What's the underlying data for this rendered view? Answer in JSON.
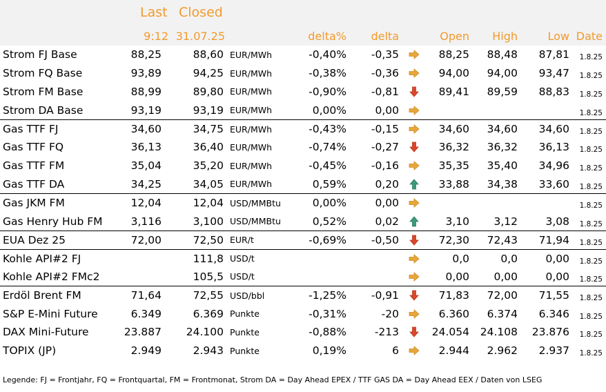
{
  "header": {
    "last_label": "Last",
    "closed_label": "Closed",
    "last_time": "9:12",
    "closed_date": "31.07.25",
    "delta_pct_label": "delta%",
    "delta_label": "delta",
    "open_label": "Open",
    "high_label": "High",
    "low_label": "Low",
    "date_label": "Date"
  },
  "colors": {
    "header_text": "#f39a2a",
    "header_bg": "#f2f2f2",
    "arrow_right": "#e8a73b",
    "arrow_down": "#d9472b",
    "arrow_up": "#3d9a7a"
  },
  "rows": [
    {
      "name": "Strom FJ Base",
      "last": "88,25",
      "closed": "88,60",
      "unit": "EUR/MWh",
      "delta_pct": "-0,40%",
      "delta": "-0,35",
      "trend": "right",
      "open": "88,25",
      "high": "88,48",
      "low": "87,81",
      "date": "1.8.25",
      "sep": false
    },
    {
      "name": "Strom FQ Base",
      "last": "93,89",
      "closed": "94,25",
      "unit": "EUR/MWh",
      "delta_pct": "-0,38%",
      "delta": "-0,36",
      "trend": "right",
      "open": "94,00",
      "high": "94,00",
      "low": "93,47",
      "date": "1.8.25",
      "sep": false
    },
    {
      "name": "Strom FM Base",
      "last": "88,99",
      "closed": "89,80",
      "unit": "EUR/MWh",
      "delta_pct": "-0,90%",
      "delta": "-0,81",
      "trend": "down",
      "open": "89,41",
      "high": "89,59",
      "low": "88,83",
      "date": "1.8.25",
      "sep": false
    },
    {
      "name": "Strom DA Base",
      "last": "93,19",
      "closed": "93,19",
      "unit": "EUR/MWh",
      "delta_pct": "0,00%",
      "delta": "0,00",
      "trend": "right",
      "open": "",
      "high": "",
      "low": "",
      "date": "1.8.25",
      "sep": false
    },
    {
      "name": "Gas TTF FJ",
      "last": "34,60",
      "closed": "34,75",
      "unit": "EUR/MWh",
      "delta_pct": "-0,43%",
      "delta": "-0,15",
      "trend": "right",
      "open": "34,60",
      "high": "34,60",
      "low": "34,60",
      "date": "1.8.25",
      "sep": true
    },
    {
      "name": "Gas TTF FQ",
      "last": "36,13",
      "closed": "36,40",
      "unit": "EUR/MWh",
      "delta_pct": "-0,74%",
      "delta": "-0,27",
      "trend": "down",
      "open": "36,32",
      "high": "36,32",
      "low": "36,13",
      "date": "1.8.25",
      "sep": false
    },
    {
      "name": "Gas TTF FM",
      "last": "35,04",
      "closed": "35,20",
      "unit": "EUR/MWh",
      "delta_pct": "-0,45%",
      "delta": "-0,16",
      "trend": "right",
      "open": "35,35",
      "high": "35,40",
      "low": "34,96",
      "date": "1.8.25",
      "sep": false
    },
    {
      "name": "Gas TTF DA",
      "last": "34,25",
      "closed": "34,05",
      "unit": "EUR/MWh",
      "delta_pct": "0,59%",
      "delta": "0,20",
      "trend": "up",
      "open": "33,88",
      "high": "34,38",
      "low": "33,60",
      "date": "1.8.25",
      "sep": false
    },
    {
      "name": "Gas JKM FM",
      "last": "12,04",
      "closed": "12,04",
      "unit": "USD/MMBtu",
      "delta_pct": "0,00%",
      "delta": "0,00",
      "trend": "right",
      "open": "",
      "high": "",
      "low": "",
      "date": "1.8.25",
      "sep": true
    },
    {
      "name": "Gas Henry Hub FM",
      "last": "3,116",
      "closed": "3,100",
      "unit": "USD/MMBtu",
      "delta_pct": "0,52%",
      "delta": "0,02",
      "trend": "up",
      "open": "3,10",
      "high": "3,12",
      "low": "3,08",
      "date": "1.8.25",
      "sep": false
    },
    {
      "name": "EUA Dez 25",
      "last": "72,00",
      "closed": "72,50",
      "unit": "EUR/t",
      "delta_pct": "-0,69%",
      "delta": "-0,50",
      "trend": "down",
      "open": "72,30",
      "high": "72,43",
      "low": "71,94",
      "date": "1.8.25",
      "sep": true
    },
    {
      "name": "Kohle API#2 FJ",
      "last": "",
      "closed": "111,8",
      "unit": "USD/t",
      "delta_pct": "",
      "delta": "",
      "trend": "right",
      "open": "0,0",
      "high": "0,0",
      "low": "0,00",
      "date": "1.8.25",
      "sep": true
    },
    {
      "name": "Kohle API#2 FMc2",
      "last": "",
      "closed": "105,5",
      "unit": "USD/t",
      "delta_pct": "",
      "delta": "",
      "trend": "right",
      "open": "0,00",
      "high": "0,00",
      "low": "0,00",
      "date": "1.8.25",
      "sep": false
    },
    {
      "name": "Erdöl Brent FM",
      "last": "71,64",
      "closed": "72,55",
      "unit": "USD/bbl",
      "delta_pct": "-1,25%",
      "delta": "-0,91",
      "trend": "down",
      "open": "71,83",
      "high": "72,00",
      "low": "71,55",
      "date": "1.8.25",
      "sep": true
    },
    {
      "name": "S&P E-Mini Future",
      "last": "6.349",
      "closed": "6.369",
      "unit": "Punkte",
      "delta_pct": "-0,31%",
      "delta": "-20",
      "trend": "right",
      "open": "6.360",
      "high": "6.374",
      "low": "6.346",
      "date": "1.8.25",
      "sep": false
    },
    {
      "name": "DAX Mini-Future",
      "last": "23.887",
      "closed": "24.100",
      "unit": "Punkte",
      "delta_pct": "-0,88%",
      "delta": "-213",
      "trend": "down",
      "open": "24.054",
      "high": "24.108",
      "low": "23.876",
      "date": "1.8.25",
      "sep": false
    },
    {
      "name": "TOPIX (JP)",
      "last": "2.949",
      "closed": "2.943",
      "unit": "Punkte",
      "delta_pct": "0,19%",
      "delta": "6",
      "trend": "right",
      "open": "2.944",
      "high": "2.962",
      "low": "2.937",
      "date": "1.8.25",
      "sep": false
    }
  ],
  "legend": "Legende: FJ = Frontjahr, FQ = Frontquartal, FM = Frontmonat, Strom DA = Day Ahead EPEX / TTF GAS DA = Day Ahead EEX / Daten von LSEG"
}
